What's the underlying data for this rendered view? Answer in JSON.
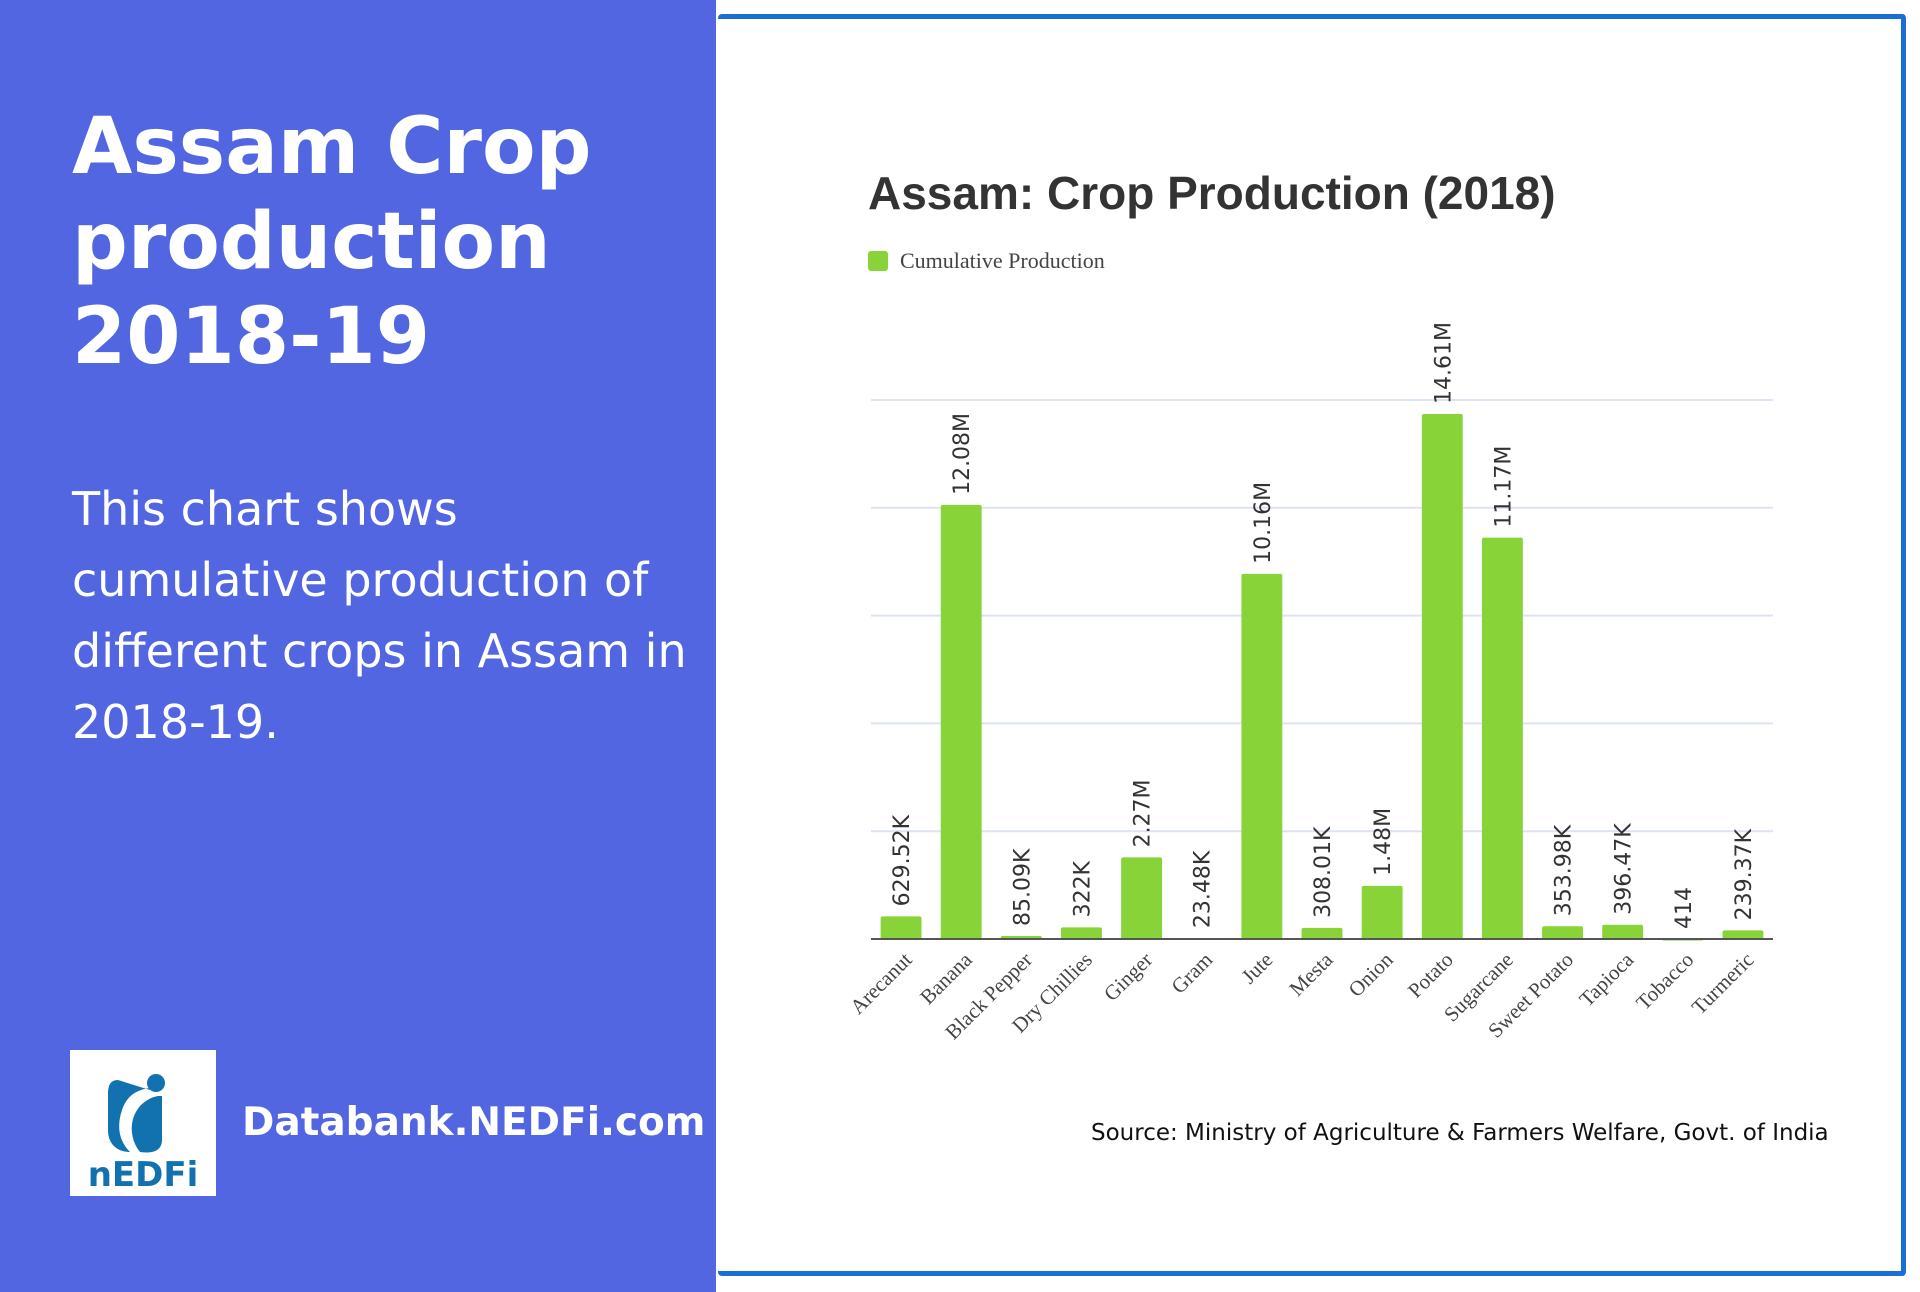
{
  "left_panel": {
    "title": "Assam Crop production 2018-19",
    "description": "This chart shows cumulative production of different crops in Assam in 2018-19.",
    "logo_text": "nEDFi",
    "site": "Databank.NEDFi.com"
  },
  "source": "Source: Ministry of Agriculture & Farmers Welfare, Govt. of India",
  "chart_data": {
    "type": "bar",
    "title": "Assam: Crop Production (2018)",
    "legend": [
      "Cumulative Production"
    ],
    "legend_placement": "top-left",
    "xlabel": "",
    "ylabel": "",
    "ylim": [
      0,
      15000000
    ],
    "grid": true,
    "bar_color": "#88d337",
    "categories": [
      "Arecanut",
      "Banana",
      "Black Pepper",
      "Dry Chillies",
      "Ginger",
      "Gram",
      "Jute",
      "Mesta",
      "Onion",
      "Potato",
      "Sugarcane",
      "Sweet Potato",
      "Tapioca",
      "Tobacco",
      "Turmeric"
    ],
    "values": [
      629520,
      12080000,
      85090,
      322000,
      2270000,
      23480,
      10160000,
      308010,
      1480000,
      14610000,
      11170000,
      353980,
      396470,
      414,
      239370
    ],
    "labels": [
      "629.52K",
      "12.08M",
      "85.09K",
      "322K",
      "2.27M",
      "23.48K",
      "10.16M",
      "308.01K",
      "1.48M",
      "14.61M",
      "11.17M",
      "353.98K",
      "396.47K",
      "414",
      "239.37K"
    ]
  }
}
